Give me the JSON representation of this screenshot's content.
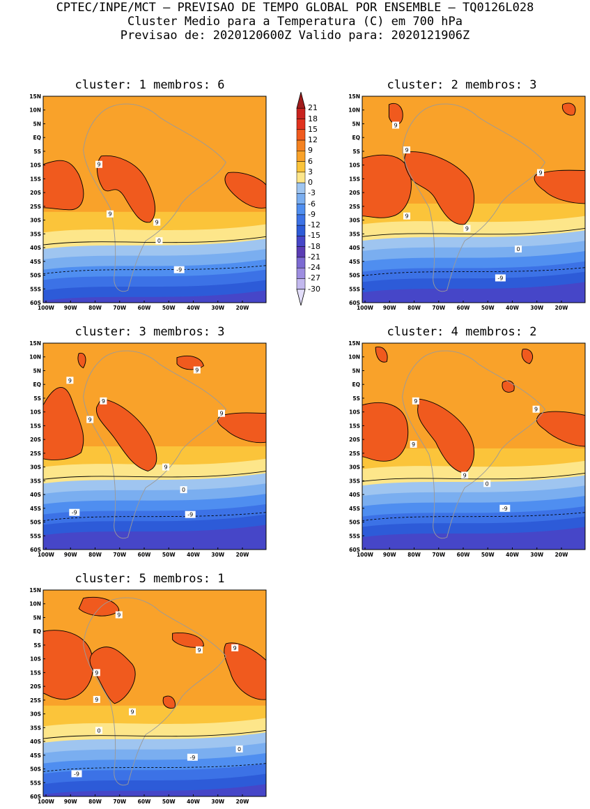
{
  "header": {
    "line1": "CPTEC/INPE/MCT – PREVISAO DE TEMPO GLOBAL POR ENSEMBLE – TQ0126L028",
    "line2": "Cluster Medio para a Temperatura (C) em 700 hPa",
    "line3": "Previsao de: 2020120600Z   Valido para: 2020121906Z"
  },
  "axes": {
    "lat_labels": [
      "15N",
      "10N",
      "5N",
      "EQ",
      "5S",
      "10S",
      "15S",
      "20S",
      "25S",
      "30S",
      "35S",
      "40S",
      "45S",
      "50S",
      "55S",
      "60S"
    ],
    "lon_labels": [
      "100W",
      "90W",
      "80W",
      "70W",
      "60W",
      "50W",
      "40W",
      "30W",
      "20W"
    ]
  },
  "panels": [
    {
      "title": "cluster: 1   membros: 6",
      "labels": [
        "9",
        "9",
        "9",
        "0",
        "-9"
      ]
    },
    {
      "title": "cluster: 2   membros: 3",
      "labels": [
        "9",
        "9",
        "9",
        "9",
        "9",
        "0",
        "-9"
      ]
    },
    {
      "title": "cluster: 3   membros: 3",
      "labels": [
        "9",
        "9",
        "9",
        "9",
        "9",
        "9",
        "0",
        "-9",
        "-9"
      ]
    },
    {
      "title": "cluster: 4   membros: 2",
      "labels": [
        "9",
        "9",
        "9",
        "9",
        "0",
        "-9"
      ]
    },
    {
      "title": "cluster: 5   membros: 1",
      "labels": [
        "9",
        "9",
        "9",
        "9",
        "9",
        "9",
        "0",
        "0",
        "-9",
        "-9"
      ]
    }
  ],
  "colorbar": {
    "labels": [
      "21",
      "18",
      "15",
      "12",
      "9",
      "6",
      "3",
      "0",
      "-3",
      "-6",
      "-9",
      "-12",
      "-15",
      "-18",
      "-21",
      "-24",
      "-27",
      "-30"
    ],
    "colors": [
      "#a01c1c",
      "#c8221e",
      "#e0321e",
      "#f05a1e",
      "#f58220",
      "#f9a22a",
      "#fbc43a",
      "#fde68a",
      "#9fc5f0",
      "#7aaef0",
      "#4f8ef0",
      "#3c72e6",
      "#2d5bd8",
      "#4646c8",
      "#5a3cb4",
      "#7c6ad2",
      "#9d8de0",
      "#c2b8ee",
      "#e3defa"
    ]
  },
  "style": {
    "fill_warm": "#f9a22a",
    "fill_hot": "#f58220",
    "fill_vhot": "#f05a1e",
    "land_outline": "#9a9a9a",
    "contour": "#000000"
  }
}
